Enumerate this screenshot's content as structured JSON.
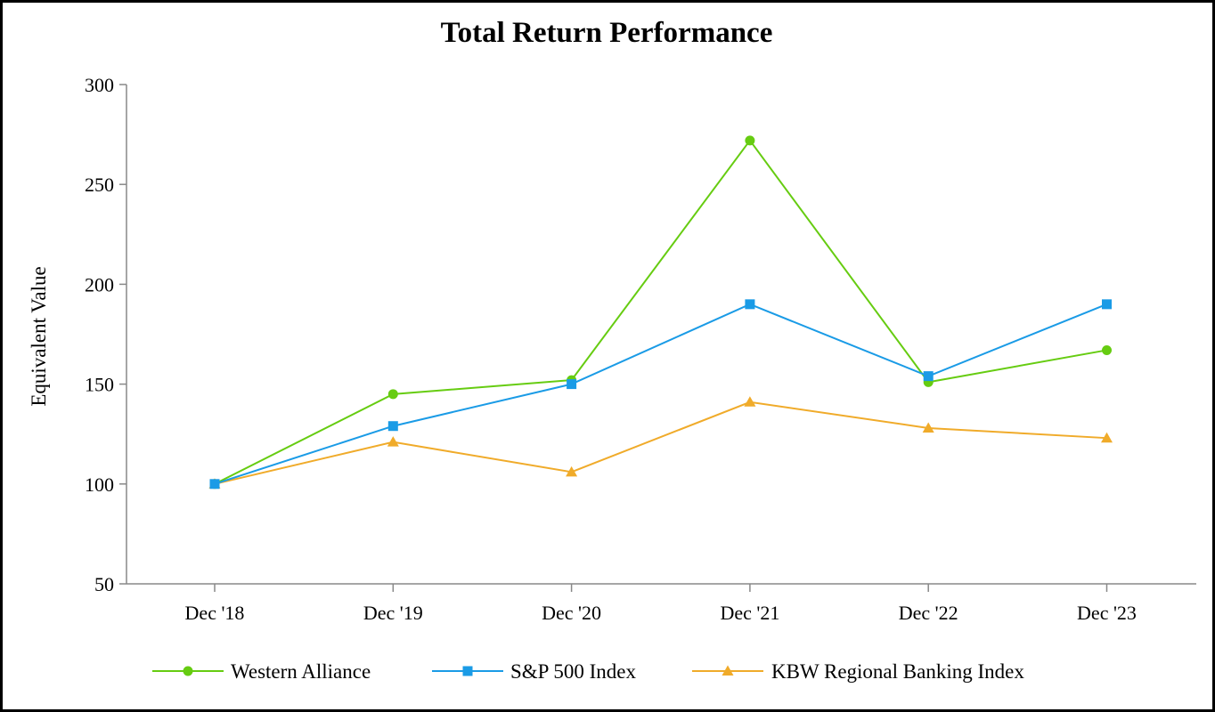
{
  "chart_data": {
    "type": "line",
    "title": "Total Return Performance",
    "xlabel": "",
    "ylabel": "Equivalent Value",
    "categories": [
      "Dec '18",
      "Dec '19",
      "Dec '20",
      "Dec '21",
      "Dec '22",
      "Dec '23"
    ],
    "ylim": [
      50,
      300
    ],
    "yticks": [
      50,
      100,
      150,
      200,
      250,
      300
    ],
    "grid": false,
    "legend_position": "bottom",
    "series": [
      {
        "name": "Western Alliance",
        "color": "#66cc11",
        "marker": "circle",
        "values": [
          100,
          145,
          152,
          272,
          151,
          167
        ]
      },
      {
        "name": "S&P 500 Index",
        "color": "#1a9be6",
        "marker": "square",
        "values": [
          100,
          129,
          150,
          190,
          154,
          190
        ]
      },
      {
        "name": "KBW Regional Banking Index",
        "color": "#f0ab2a",
        "marker": "triangle",
        "values": [
          100,
          121,
          106,
          141,
          128,
          123
        ]
      }
    ]
  }
}
